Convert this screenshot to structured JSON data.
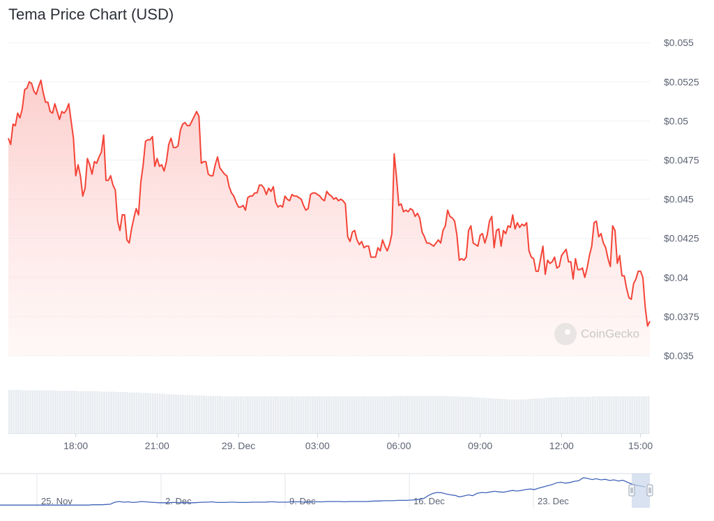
{
  "title": "Tema Price Chart (USD)",
  "watermark": "CoinGecko",
  "colors": {
    "price_line": "#f44336",
    "fill_top": "#fbc6c4",
    "fill_bottom": "#fff0ef",
    "volume": "#e9ecf0",
    "nav_line": "#3e62b8",
    "grid": "#eef0f3",
    "axis_text": "#5b6272",
    "nav_handle": "#c9d5ea"
  },
  "chart_data": {
    "type": "area",
    "series": [
      {
        "values": [
          0.0489,
          0.0485,
          0.0498,
          0.0497,
          0.0505,
          0.0502,
          0.0508,
          0.052,
          0.0521,
          0.0525,
          0.0524,
          0.0519,
          0.0517,
          0.0522,
          0.0526,
          0.0518,
          0.0512,
          0.0512,
          0.0506,
          0.0505,
          0.0511,
          0.0506,
          0.0501,
          0.0506,
          0.0505,
          0.0507,
          0.0511,
          0.05,
          0.0489,
          0.0465,
          0.0472,
          0.0465,
          0.0452,
          0.0457,
          0.0476,
          0.0472,
          0.0466,
          0.0474,
          0.0473,
          0.0477,
          0.048,
          0.0491,
          0.0462,
          0.0462,
          0.0465,
          0.0459,
          0.0456,
          0.0436,
          0.043,
          0.044,
          0.044,
          0.0424,
          0.0422,
          0.0431,
          0.0438,
          0.0444,
          0.044,
          0.0461,
          0.0472,
          0.0487,
          0.0488,
          0.0488,
          0.049,
          0.0471,
          0.0476,
          0.0471,
          0.0472,
          0.0468,
          0.0474,
          0.0485,
          0.0489,
          0.0483,
          0.0483,
          0.0484,
          0.0494,
          0.0498,
          0.0499,
          0.0497,
          0.0497,
          0.05,
          0.0503,
          0.0506,
          0.0503,
          0.0473,
          0.0474,
          0.0474,
          0.0466,
          0.0465,
          0.0465,
          0.0472,
          0.0477,
          0.047,
          0.0468,
          0.0466,
          0.0465,
          0.0458,
          0.0454,
          0.0452,
          0.0448,
          0.0445,
          0.0445,
          0.0446,
          0.0443,
          0.0451,
          0.0452,
          0.0452,
          0.0454,
          0.0454,
          0.0459,
          0.0459,
          0.0457,
          0.0453,
          0.0457,
          0.0455,
          0.0458,
          0.0448,
          0.0445,
          0.0446,
          0.0445,
          0.0452,
          0.045,
          0.0449,
          0.0453,
          0.0452,
          0.0452,
          0.0451,
          0.045,
          0.0446,
          0.0443,
          0.0444,
          0.0453,
          0.0454,
          0.0454,
          0.0453,
          0.0452,
          0.045,
          0.0449,
          0.0455,
          0.0453,
          0.0452,
          0.045,
          0.0451,
          0.0449,
          0.045,
          0.0449,
          0.0447,
          0.0426,
          0.0423,
          0.0429,
          0.043,
          0.0424,
          0.0421,
          0.0423,
          0.0419,
          0.042,
          0.042,
          0.0413,
          0.0413,
          0.0413,
          0.0419,
          0.0417,
          0.0424,
          0.042,
          0.0417,
          0.0421,
          0.0428,
          0.0479,
          0.0464,
          0.0446,
          0.0447,
          0.0442,
          0.0443,
          0.0442,
          0.0444,
          0.0443,
          0.0439,
          0.0441,
          0.0438,
          0.0429,
          0.0426,
          0.0422,
          0.0422,
          0.0421,
          0.042,
          0.0422,
          0.0424,
          0.0422,
          0.043,
          0.0433,
          0.0443,
          0.0439,
          0.0438,
          0.0436,
          0.0427,
          0.0411,
          0.0412,
          0.0411,
          0.0413,
          0.043,
          0.0433,
          0.0422,
          0.0421,
          0.042,
          0.0427,
          0.0428,
          0.0422,
          0.0427,
          0.0436,
          0.0439,
          0.0419,
          0.043,
          0.0431,
          0.042,
          0.043,
          0.0428,
          0.0433,
          0.0432,
          0.044,
          0.0431,
          0.0435,
          0.0432,
          0.0434,
          0.0433,
          0.0435,
          0.0417,
          0.0413,
          0.0412,
          0.0404,
          0.0404,
          0.0412,
          0.042,
          0.0402,
          0.0411,
          0.0409,
          0.041,
          0.0413,
          0.0406,
          0.0407,
          0.0414,
          0.0416,
          0.0418,
          0.041,
          0.041,
          0.0399,
          0.0412,
          0.0405,
          0.0405,
          0.0406,
          0.04,
          0.0406,
          0.0414,
          0.042,
          0.0435,
          0.0436,
          0.0426,
          0.0428,
          0.0422,
          0.0419,
          0.0412,
          0.0407,
          0.0433,
          0.043,
          0.0409,
          0.0414,
          0.0401,
          0.0401,
          0.0393,
          0.0387,
          0.0386,
          0.0396,
          0.0399,
          0.0404,
          0.0404,
          0.04,
          0.0381,
          0.0369,
          0.0372
        ]
      }
    ],
    "ylim": [
      0.035,
      0.0555
    ],
    "y_ticks": [
      {
        "value": 0.055,
        "label": "$0.055"
      },
      {
        "value": 0.0525,
        "label": "$0.0525"
      },
      {
        "value": 0.05,
        "label": "$0.05"
      },
      {
        "value": 0.0475,
        "label": "$0.0475"
      },
      {
        "value": 0.045,
        "label": "$0.045"
      },
      {
        "value": 0.0425,
        "label": "$0.0425"
      },
      {
        "value": 0.04,
        "label": "$0.04"
      },
      {
        "value": 0.0375,
        "label": "$0.0375"
      },
      {
        "value": 0.035,
        "label": "$0.035"
      }
    ],
    "x_ticks": [
      {
        "index": 29,
        "label": "18:00"
      },
      {
        "index": 64,
        "label": "21:00"
      },
      {
        "index": 99,
        "label": "29. Dec"
      },
      {
        "index": 133,
        "label": "03:00"
      },
      {
        "index": 168,
        "label": "06:00"
      },
      {
        "index": 203,
        "label": "09:00"
      },
      {
        "index": 238,
        "label": "12:00"
      },
      {
        "index": 272,
        "label": "15:00"
      }
    ],
    "volume": [
      1.0,
      1.0,
      1.0,
      1.0,
      1.0,
      0.99,
      0.99,
      0.99,
      0.99,
      0.99,
      0.99,
      0.99,
      0.99,
      0.99,
      0.99,
      0.99,
      0.99,
      0.99,
      0.99,
      0.99,
      0.98,
      0.98,
      0.98,
      0.98,
      0.98,
      0.98,
      0.98,
      0.98,
      0.98,
      0.98,
      0.97,
      0.97,
      0.97,
      0.97,
      0.97,
      0.97,
      0.97,
      0.97,
      0.97,
      0.96,
      0.96,
      0.96,
      0.96,
      0.96,
      0.96,
      0.96,
      0.95,
      0.95,
      0.95,
      0.95,
      0.95,
      0.95,
      0.94,
      0.94,
      0.94,
      0.94,
      0.94,
      0.93,
      0.93,
      0.93,
      0.93,
      0.92,
      0.92,
      0.92,
      0.92,
      0.91,
      0.91,
      0.91,
      0.9,
      0.9,
      0.9,
      0.9,
      0.89,
      0.89,
      0.89,
      0.89,
      0.88,
      0.88,
      0.88,
      0.88,
      0.87,
      0.87,
      0.87,
      0.87,
      0.87,
      0.86,
      0.86,
      0.86,
      0.86,
      0.86,
      0.86,
      0.86,
      0.85,
      0.85,
      0.85,
      0.85,
      0.85,
      0.85,
      0.85,
      0.85,
      0.85,
      0.85,
      0.85,
      0.85,
      0.85,
      0.85,
      0.85,
      0.85,
      0.85,
      0.85,
      0.85,
      0.85,
      0.85,
      0.85,
      0.85,
      0.85,
      0.85,
      0.85,
      0.85,
      0.85,
      0.85,
      0.85,
      0.85,
      0.85,
      0.85,
      0.85,
      0.85,
      0.85,
      0.85,
      0.85,
      0.85,
      0.85,
      0.85,
      0.85,
      0.85,
      0.85,
      0.85,
      0.85,
      0.85,
      0.85,
      0.85,
      0.85,
      0.85,
      0.85,
      0.85,
      0.85,
      0.85,
      0.85,
      0.85,
      0.85,
      0.85,
      0.85,
      0.85,
      0.85,
      0.85,
      0.85,
      0.85,
      0.85,
      0.85,
      0.85,
      0.85,
      0.85,
      0.85,
      0.85,
      0.85,
      0.85,
      0.86,
      0.86,
      0.86,
      0.86,
      0.86,
      0.86,
      0.86,
      0.86,
      0.86,
      0.86,
      0.86,
      0.86,
      0.86,
      0.86,
      0.86,
      0.86,
      0.86,
      0.86,
      0.86,
      0.86,
      0.86,
      0.86,
      0.86,
      0.86,
      0.85,
      0.85,
      0.85,
      0.85,
      0.85,
      0.85,
      0.84,
      0.84,
      0.84,
      0.84,
      0.83,
      0.83,
      0.83,
      0.82,
      0.82,
      0.82,
      0.81,
      0.81,
      0.81,
      0.8,
      0.8,
      0.8,
      0.79,
      0.79,
      0.79,
      0.78,
      0.78,
      0.78,
      0.78,
      0.78,
      0.78,
      0.78,
      0.78,
      0.78,
      0.79,
      0.79,
      0.8,
      0.8,
      0.8,
      0.81,
      0.81,
      0.81,
      0.82,
      0.82,
      0.82,
      0.83,
      0.83,
      0.83,
      0.83,
      0.83,
      0.83,
      0.84,
      0.84,
      0.84,
      0.84,
      0.84,
      0.84,
      0.84,
      0.84,
      0.84,
      0.84,
      0.84,
      0.85,
      0.85,
      0.85,
      0.85,
      0.85,
      0.85,
      0.85,
      0.85,
      0.85,
      0.85,
      0.85,
      0.85,
      0.85,
      0.85,
      0.85,
      0.85,
      0.85,
      0.85,
      0.85,
      0.85,
      0.85,
      0.85,
      0.85,
      0.85,
      0.85
    ]
  },
  "navigator": {
    "labels": [
      "25. Nov",
      "2. Dec",
      "9. Dec",
      "16. Dec",
      "23. Dec"
    ],
    "series": [
      0.02,
      0.02,
      0.02,
      0.02,
      0.02,
      0.02,
      0.02,
      0.02,
      0.02,
      0.02,
      0.02,
      0.02,
      0.02,
      0.02,
      0.02,
      0.02,
      0.02,
      0.02,
      0.02,
      0.02,
      0.02,
      0.03,
      0.03,
      0.03,
      0.04,
      0.05,
      0.12,
      0.14,
      0.12,
      0.13,
      0.11,
      0.12,
      0.14,
      0.13,
      0.12,
      0.11,
      0.1,
      0.1,
      0.1,
      0.11,
      0.11,
      0.1,
      0.1,
      0.1,
      0.1,
      0.11,
      0.12,
      0.12,
      0.13,
      0.11,
      0.11,
      0.11,
      0.12,
      0.12,
      0.11,
      0.11,
      0.11,
      0.12,
      0.12,
      0.12,
      0.12,
      0.13,
      0.13,
      0.12,
      0.12,
      0.12,
      0.13,
      0.13,
      0.13,
      0.12,
      0.12,
      0.13,
      0.13,
      0.13,
      0.14,
      0.14,
      0.14,
      0.14,
      0.13,
      0.14,
      0.14,
      0.14,
      0.14,
      0.14,
      0.15,
      0.16,
      0.16,
      0.17,
      0.17,
      0.17,
      0.18,
      0.18,
      0.18,
      0.19,
      0.2,
      0.22,
      0.25,
      0.35,
      0.42,
      0.45,
      0.44,
      0.4,
      0.37,
      0.35,
      0.3,
      0.33,
      0.37,
      0.34,
      0.42,
      0.45,
      0.44,
      0.47,
      0.49,
      0.47,
      0.46,
      0.49,
      0.52,
      0.5,
      0.52,
      0.55,
      0.57,
      0.55,
      0.6,
      0.64,
      0.68,
      0.72,
      0.78,
      0.8,
      0.77,
      0.79,
      0.83,
      0.85,
      0.95,
      0.93,
      0.89,
      0.92,
      0.88,
      0.9,
      0.86,
      0.88,
      0.84,
      0.87,
      0.8,
      0.74,
      0.7,
      0.67,
      0.64
    ],
    "handle_icon": "grip-handle"
  }
}
